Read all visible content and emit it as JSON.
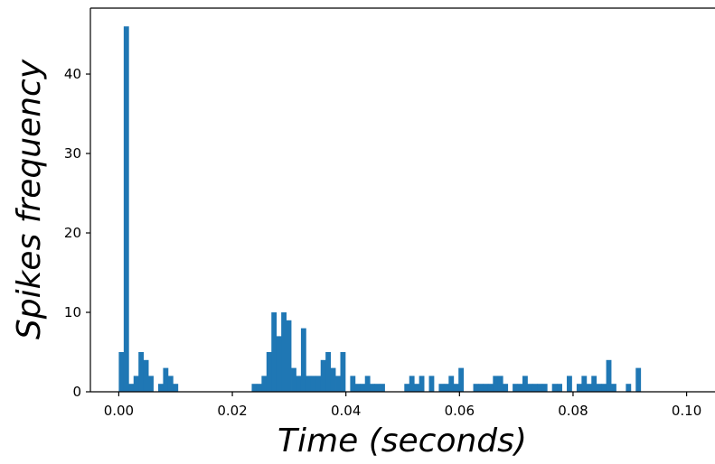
{
  "chart_data": {
    "type": "bar",
    "title": "",
    "xlabel": "Time (seconds)",
    "ylabel": "Spikes frequency",
    "xlim": [
      -0.005,
      0.105
    ],
    "ylim": [
      0,
      48.3
    ],
    "bin_width": 0.000867,
    "x_ticks": [
      0.0,
      0.02,
      0.04,
      0.06,
      0.08,
      0.1
    ],
    "x_tick_labels": [
      "0.00",
      "0.02",
      "0.04",
      "0.06",
      "0.08",
      "0.10"
    ],
    "y_ticks": [
      0,
      10,
      20,
      30,
      40
    ],
    "y_tick_labels": [
      "0",
      "10",
      "20",
      "30",
      "40"
    ],
    "grid": false,
    "legend": "none",
    "color": "#1f77b4",
    "x": [
      0.0,
      0.000867,
      0.001734,
      0.002601,
      0.003468,
      0.004335,
      0.005202,
      0.006069,
      0.006936,
      0.007803,
      0.00867,
      0.009537,
      0.010404,
      0.011271,
      0.012138,
      0.013005,
      0.013872,
      0.014739,
      0.015606,
      0.016473,
      0.01734,
      0.018207,
      0.019074,
      0.019941,
      0.020808,
      0.021675,
      0.022542,
      0.023409,
      0.024276,
      0.025143,
      0.02601,
      0.026877,
      0.027744,
      0.028611,
      0.029478,
      0.030345,
      0.031212,
      0.032079,
      0.032946,
      0.033813,
      0.03468,
      0.035547,
      0.036414,
      0.037281,
      0.038148,
      0.039015,
      0.039882,
      0.040749,
      0.041616,
      0.042483,
      0.04335,
      0.044217,
      0.045084,
      0.045951,
      0.046818,
      0.047685,
      0.048552,
      0.049419,
      0.050286,
      0.051153,
      0.05202,
      0.052887,
      0.053754,
      0.054621,
      0.055488,
      0.056355,
      0.057222,
      0.058089,
      0.058956,
      0.059823,
      0.06069,
      0.061557,
      0.062424,
      0.063291,
      0.064158,
      0.065025,
      0.065892,
      0.066759,
      0.067626,
      0.068493,
      0.06936,
      0.070227,
      0.071094,
      0.071961,
      0.072828,
      0.073695,
      0.074562,
      0.075429,
      0.076296,
      0.077163,
      0.07803,
      0.078897,
      0.079764,
      0.080631,
      0.081498,
      0.082365,
      0.083232,
      0.084099,
      0.084966,
      0.085833,
      0.0867,
      0.087567,
      0.088434,
      0.089301,
      0.090168,
      0.091035,
      0.091902,
      0.092769,
      0.093636,
      0.094503,
      0.09537,
      0.096237,
      0.097104,
      0.097971,
      0.098838,
      0.099705
    ],
    "values": [
      5,
      46,
      1,
      2,
      5,
      4,
      2,
      0,
      1,
      3,
      2,
      1,
      0,
      0,
      0,
      0,
      0,
      0,
      0,
      0,
      0,
      0,
      0,
      0,
      0,
      0,
      0,
      1,
      1,
      2,
      5,
      10,
      7,
      10,
      9,
      3,
      2,
      8,
      2,
      2,
      2,
      4,
      5,
      3,
      2,
      5,
      0,
      2,
      1,
      1,
      2,
      1,
      1,
      1,
      0,
      0,
      0,
      0,
      1,
      2,
      1,
      2,
      0,
      2,
      0,
      1,
      1,
      2,
      1,
      3,
      0,
      0,
      1,
      1,
      1,
      1,
      2,
      2,
      1,
      0,
      1,
      1,
      2,
      1,
      1,
      1,
      1,
      0,
      1,
      1,
      0,
      2,
      0,
      1,
      2,
      1,
      2,
      1,
      1,
      4,
      1,
      0,
      0,
      1,
      0,
      3,
      0,
      0,
      0,
      0,
      0,
      0,
      0,
      0,
      0,
      0
    ]
  }
}
